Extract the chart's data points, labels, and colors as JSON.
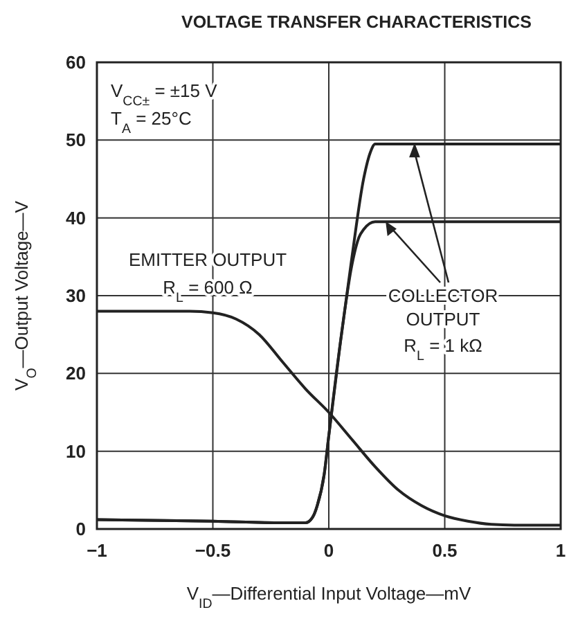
{
  "chart_data": {
    "type": "line",
    "title": "VOLTAGE TRANSFER CHARACTERISTICS",
    "xlabel": "V$_{ID}$—Differential Input Voltage—mV",
    "ylabel": "V$_{O}$—Output Voltage—V",
    "xlim": [
      -1,
      1
    ],
    "xticks": [
      -1,
      -0.5,
      0,
      0.5,
      1
    ],
    "ylim": [
      0,
      60
    ],
    "yticks": [
      0,
      10,
      20,
      30,
      40,
      50,
      60
    ],
    "grid": true,
    "line_style": "solid",
    "annotations": [
      "V$_{CC±}$ = ±15 V",
      "T$_{A}$ = 25°C",
      "EMITTER OUTPUT",
      "R$_{L}$ = 600 Ω",
      {
        "text": "COLLECTOR OUTPUT",
        "x": 0.37,
        "y": 49.5
      },
      "R$_{L}$ = 1 kΩ"
    ],
    "series": [
      {
        "color": "#222222",
        "x": [
          -1,
          -0.5,
          -0.2,
          -0.1,
          -0.07,
          -0.05,
          -0.02,
          0,
          0.05,
          0.1,
          0.15,
          0.18,
          0.2,
          0.25,
          0.5,
          1
        ],
        "values": [
          1.2,
          1,
          0.8,
          0.8,
          1.5,
          3,
          7,
          12,
          24,
          35,
          45,
          48.5,
          49.5,
          49.5,
          49.5,
          49.5
        ]
      },
      {
        "color": "#222222",
        "x": [
          -1,
          -0.5,
          -0.2,
          -0.1,
          -0.07,
          -0.05,
          -0.02,
          0,
          0.05,
          0.1,
          0.13,
          0.15,
          0.2,
          0.3,
          0.5,
          1
        ],
        "values": [
          1.2,
          1,
          0.8,
          0.8,
          1.5,
          3,
          7,
          12,
          24,
          34,
          37.5,
          38.5,
          39.5,
          39.5,
          39.5,
          39.5
        ]
      },
      {
        "color": "#222222",
        "x": [
          -1,
          -0.6,
          -0.5,
          -0.4,
          -0.3,
          -0.2,
          -0.1,
          0,
          0.1,
          0.2,
          0.3,
          0.4,
          0.5,
          0.6,
          0.7,
          0.8,
          1
        ],
        "values": [
          28,
          28,
          27.8,
          27,
          25,
          21.5,
          18,
          15,
          11.5,
          8,
          5,
          3,
          1.7,
          1,
          0.6,
          0.5,
          0.5
        ]
      }
    ]
  }
}
